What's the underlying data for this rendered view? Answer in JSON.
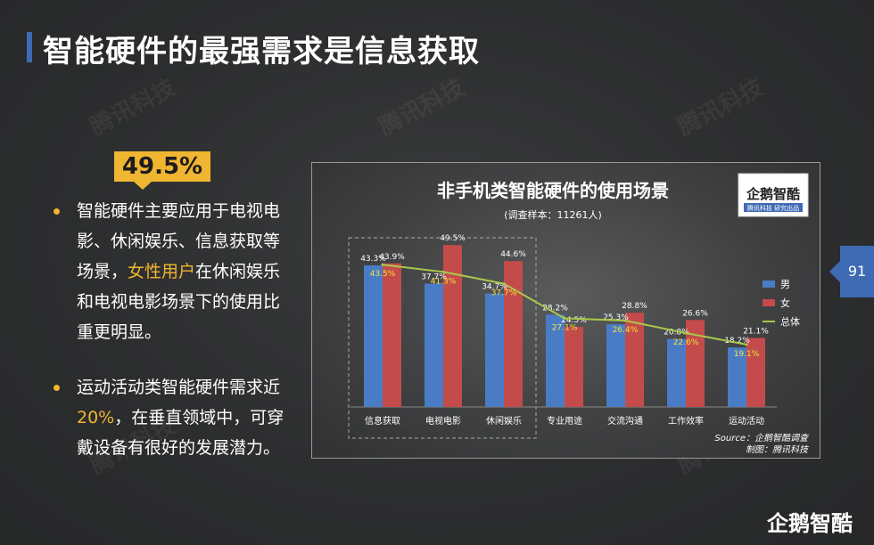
{
  "page": {
    "title": "智能硬件的最强需求是信息获取",
    "watermark": "腾讯科技",
    "page_number": "91",
    "logo_bottom": "企鹅智酷"
  },
  "left": {
    "badge": "49.5%",
    "bullet1": {
      "line1": "智能硬件主要应用于电视电",
      "line2": "影、休闲娱乐、信息获取等",
      "line3_a": "场景，",
      "line3_highlight": "女性用户",
      "line3_b": "在休闲娱乐",
      "line4": "和电视电影场景下的使用比",
      "line5": "重更明显。"
    },
    "bullet2": {
      "line1": "运动活动类智能硬件需求近",
      "line2_highlight": "20%",
      "line2_b": "，在垂直领域中，可穿",
      "line3": "戴设备有很好的发展潜力。"
    }
  },
  "chart_logo": {
    "name": "企鹅智酷",
    "sub": "腾讯科技  研究出品"
  },
  "chart_data": {
    "type": "bar",
    "title": "非手机类智能硬件的使用场景",
    "subtitle": "(调查样本：11261人)",
    "categories": [
      "信息获取",
      "电视电影",
      "休闲娱乐",
      "专业用途",
      "交流沟通",
      "工作效率",
      "运动活动"
    ],
    "series": [
      {
        "name": "男",
        "type": "bar",
        "color": "#4a7cc6",
        "values": [
          43.3,
          37.7,
          34.7,
          28.2,
          25.3,
          20.8,
          18.2
        ],
        "labels": [
          "43.3%",
          "37.7%",
          "34.7%",
          "28.2%",
          "25.3%",
          "20.8%",
          "18.2%"
        ]
      },
      {
        "name": "女",
        "type": "bar",
        "color": "#c44b4b",
        "values": [
          43.9,
          49.5,
          44.6,
          24.5,
          28.8,
          26.6,
          21.1
        ],
        "labels": [
          "43.9%",
          "49.5%",
          "44.6%",
          "24.5%",
          "28.8%",
          "26.6%",
          "21.1%"
        ]
      },
      {
        "name": "总体",
        "type": "line",
        "color": "#a9c94a",
        "values": [
          43.5,
          41.3,
          37.7,
          27.1,
          26.4,
          22.6,
          19.1
        ],
        "labels": [
          "43.5%",
          "41.3%",
          "37.7%",
          "27.1%",
          "26.4%",
          "22.6%",
          "19.1%"
        ]
      }
    ],
    "ylim": [
      0,
      55
    ],
    "grid": false,
    "legend": "right",
    "highlight_group": [
      0,
      2
    ],
    "source_line1": "Source：企鹅智酷调查",
    "source_line2": "制图：腾讯科技"
  }
}
